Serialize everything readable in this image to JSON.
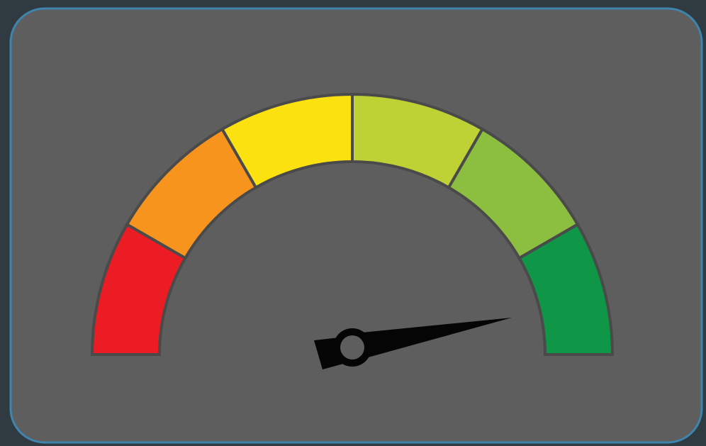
{
  "gauge": {
    "segments": [
      {
        "color": "#ec1c24"
      },
      {
        "color": "#f7941d"
      },
      {
        "color": "#fbe10f"
      },
      {
        "color": "#bfd235"
      },
      {
        "color": "#8cbf3f"
      },
      {
        "color": "#0f9647"
      }
    ]
  }
}
